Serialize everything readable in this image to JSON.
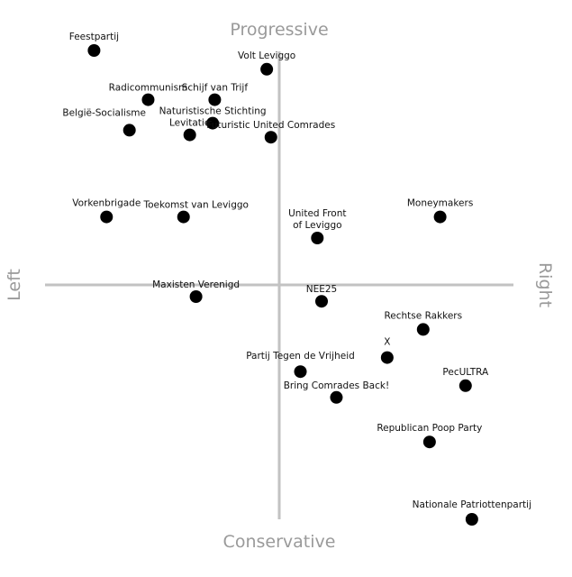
{
  "chart_data": {
    "type": "scatter",
    "title": "",
    "axes": {
      "top": "Progressive",
      "bottom": "Conservative",
      "left": "Left",
      "right": "Right"
    },
    "xlim": [
      -10,
      10
    ],
    "ylim": [
      -10,
      10
    ],
    "grid": false,
    "marker_color": "#000000",
    "axis_color": "#c2c2c2",
    "points": [
      {
        "label": "Feestpartij",
        "x": -8.9,
        "y": 10.0
      },
      {
        "label": "Volt Leviggo",
        "x": -0.6,
        "y": 9.2
      },
      {
        "label": "Radicommunism",
        "x": -6.3,
        "y": 7.9
      },
      {
        "label": "Schijf van Trijf",
        "x": -3.1,
        "y": 7.9
      },
      {
        "label": "Naturistische Stichting",
        "x": -3.2,
        "y": 6.9
      },
      {
        "label": "België-Socialisme",
        "x": -7.2,
        "y": 6.6
      },
      {
        "label": "Levitatie",
        "x": -4.3,
        "y": 6.4
      },
      {
        "label": "Futuristic United Comrades",
        "x": -0.4,
        "y": 6.3
      },
      {
        "label": "Vorkenbrigade",
        "x": -8.3,
        "y": 2.9
      },
      {
        "label": "Toekomst van Leviggo",
        "x": -4.6,
        "y": 2.9
      },
      {
        "label": "United Front of Leviggo",
        "x": 1.8,
        "y": 2.0
      },
      {
        "label": "Moneymakers",
        "x": 7.6,
        "y": 2.9
      },
      {
        "label": "Maxisten Verenigd",
        "x": -4.0,
        "y": -0.5
      },
      {
        "label": "NEE25",
        "x": 2.0,
        "y": -0.7
      },
      {
        "label": "Rechtse Rakkers",
        "x": 6.8,
        "y": -1.9
      },
      {
        "label": "X",
        "x": 5.1,
        "y": -3.1
      },
      {
        "label": "Partij Tegen de Vrijheid",
        "x": 1.0,
        "y": -3.7
      },
      {
        "label": "Bring Comrades Back!",
        "x": 2.7,
        "y": -4.8
      },
      {
        "label": "PecULTRA",
        "x": 8.8,
        "y": -4.3
      },
      {
        "label": "Republican Poop Party",
        "x": 7.1,
        "y": -6.7
      },
      {
        "label": "Nationale Patriottenpartij",
        "x": 9.1,
        "y": -10.0
      }
    ]
  }
}
